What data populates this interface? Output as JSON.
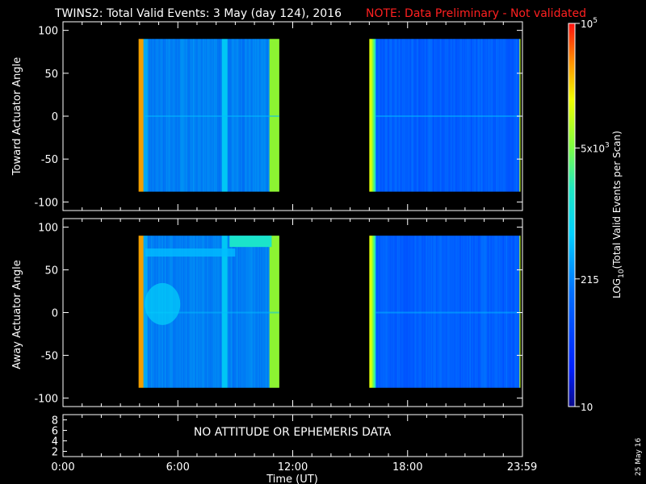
{
  "header": {
    "title": "TWINS2: Total Valid Events:  3 May (day 124), 2016",
    "note": "NOTE: Data Preliminary - Not validated",
    "note_color": "#ff2020"
  },
  "chart_data": [
    {
      "type": "heatmap",
      "name": "toward",
      "ylabel": "Toward Actuator Angle",
      "ylim": [
        -110,
        110
      ],
      "yticks": [
        100,
        50,
        0,
        -50,
        -100
      ],
      "xlim": [
        0,
        24
      ],
      "data_windows_hours": [
        [
          3.95,
          11.3
        ],
        [
          16.0,
          23.9
        ]
      ],
      "angle_range": [
        -88,
        90
      ]
    },
    {
      "type": "heatmap",
      "name": "away",
      "ylabel": "Away Actuator Angle",
      "ylim": [
        -110,
        110
      ],
      "yticks": [
        100,
        50,
        0,
        -50,
        -100
      ],
      "xlim": [
        0,
        24
      ],
      "data_windows_hours": [
        [
          3.95,
          11.3
        ],
        [
          16.0,
          23.9
        ]
      ],
      "angle_range": [
        -88,
        90
      ]
    },
    {
      "type": "line",
      "name": "ephemeris",
      "ylim": [
        1,
        9
      ],
      "yticks": [
        8,
        6,
        4,
        2
      ],
      "message": "NO ATTITUDE OR EPHEMERIS DATA"
    }
  ],
  "xaxis": {
    "label": "Time (UT)",
    "ticks": [
      {
        "hour": 0,
        "label": "0:00"
      },
      {
        "hour": 6,
        "label": "6:00"
      },
      {
        "hour": 12,
        "label": "12:00"
      },
      {
        "hour": 18,
        "label": "18:00"
      },
      {
        "hour": 23.983,
        "label": "23:59"
      }
    ]
  },
  "colorbar": {
    "label_prefix": "LOG",
    "label_sub": "10",
    "label_rest": "(Total Valid  Events per Scan)",
    "ticks": [
      {
        "value": 100000,
        "base": "10",
        "exp": "5"
      },
      {
        "value": 5000,
        "base": "5x10",
        "exp": "3"
      },
      {
        "value": 215,
        "base": "215",
        "exp": ""
      },
      {
        "value": 10,
        "base": "10",
        "exp": ""
      }
    ],
    "range": [
      10,
      100000
    ]
  },
  "date_stamp": "25 May 16"
}
